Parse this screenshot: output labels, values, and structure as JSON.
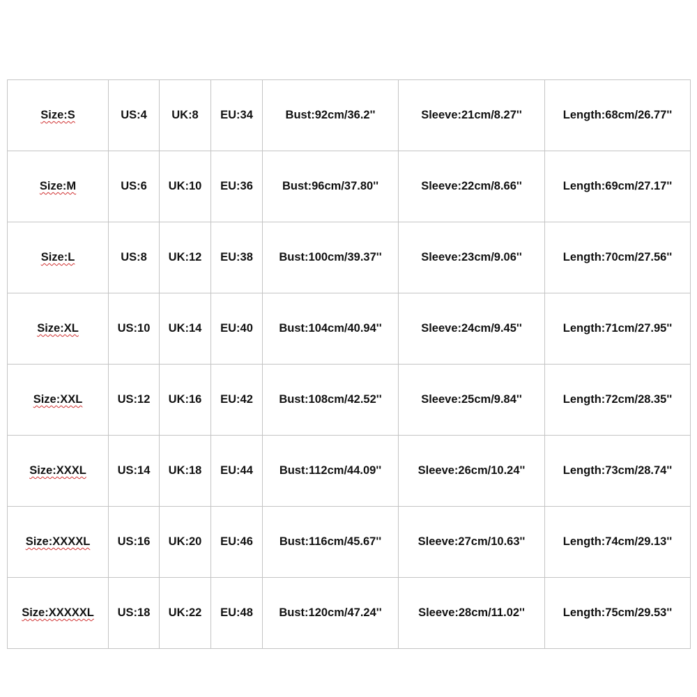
{
  "rows": [
    {
      "size": "Size:S",
      "us": "US:4",
      "uk": "UK:8",
      "eu": "EU:34",
      "bust": "Bust:92cm/36.2''",
      "sleeve": "Sleeve:21cm/8.27''",
      "length": "Length:68cm/26.77''"
    },
    {
      "size": "Size:M",
      "us": "US:6",
      "uk": "UK:10",
      "eu": "EU:36",
      "bust": "Bust:96cm/37.80''",
      "sleeve": "Sleeve:22cm/8.66''",
      "length": "Length:69cm/27.17''"
    },
    {
      "size": "Size:L",
      "us": "US:8",
      "uk": "UK:12",
      "eu": "EU:38",
      "bust": "Bust:100cm/39.37''",
      "sleeve": "Sleeve:23cm/9.06''",
      "length": "Length:70cm/27.56''"
    },
    {
      "size": "Size:XL",
      "us": "US:10",
      "uk": "UK:14",
      "eu": "EU:40",
      "bust": "Bust:104cm/40.94''",
      "sleeve": "Sleeve:24cm/9.45''",
      "length": "Length:71cm/27.95''"
    },
    {
      "size": "Size:XXL",
      "us": "US:12",
      "uk": "UK:16",
      "eu": "EU:42",
      "bust": "Bust:108cm/42.52''",
      "sleeve": "Sleeve:25cm/9.84''",
      "length": "Length:72cm/28.35''"
    },
    {
      "size": "Size:XXXL",
      "us": "US:14",
      "uk": "UK:18",
      "eu": "EU:44",
      "bust": "Bust:112cm/44.09''",
      "sleeve": "Sleeve:26cm/10.24''",
      "length": "Length:73cm/28.74''"
    },
    {
      "size": "Size:XXXXL",
      "us": "US:16",
      "uk": "UK:20",
      "eu": "EU:46",
      "bust": "Bust:116cm/45.67''",
      "sleeve": "Sleeve:27cm/10.63''",
      "length": "Length:74cm/29.13''"
    },
    {
      "size": "Size:XXXXXL",
      "us": "US:18",
      "uk": "UK:22",
      "eu": "EU:48",
      "bust": "Bust:120cm/47.24''",
      "sleeve": "Sleeve:28cm/11.02''",
      "length": "Length:75cm/29.53''"
    }
  ]
}
